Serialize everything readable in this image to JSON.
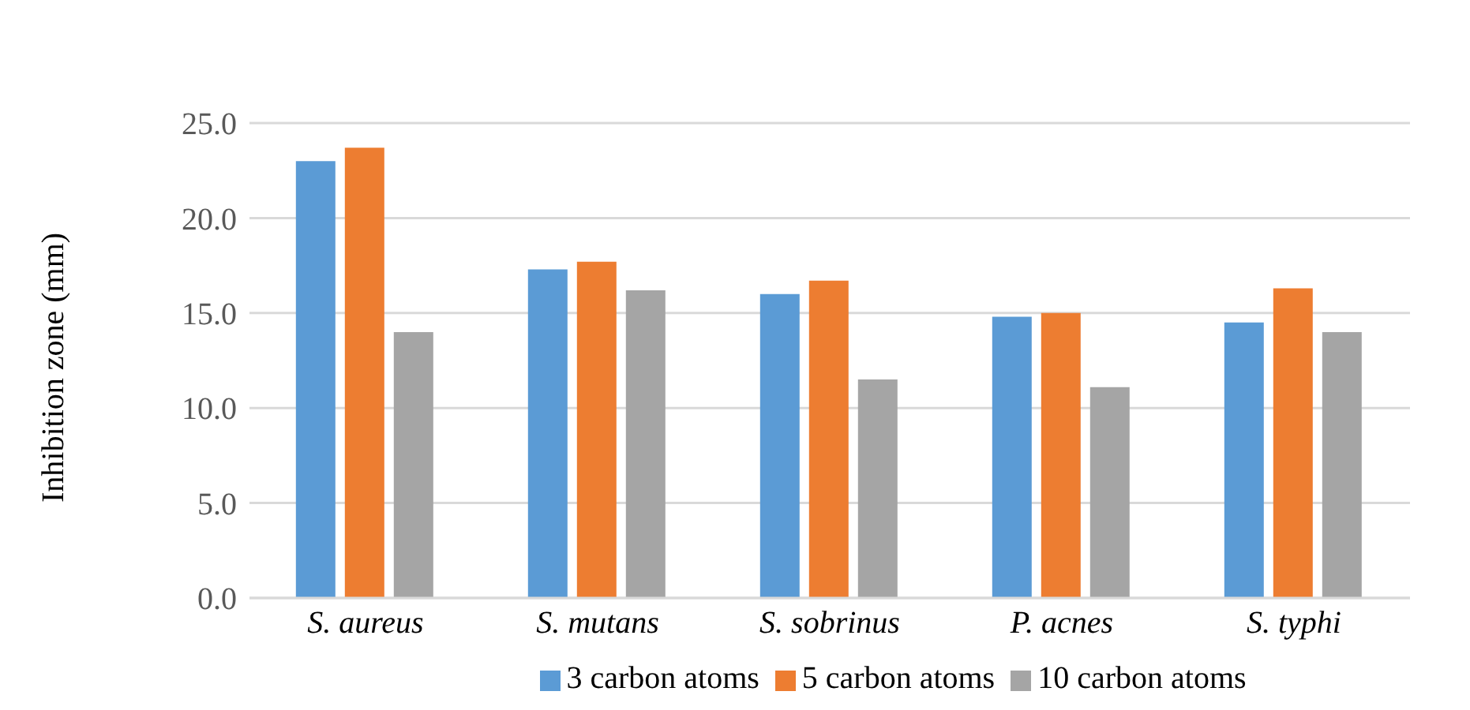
{
  "chart_data": {
    "type": "bar",
    "ylabel": "Inhibition zone (mm)",
    "categories": [
      "S. aureus",
      "S. mutans",
      "S. sobrinus",
      "P. acnes",
      "S. typhi"
    ],
    "series": [
      {
        "name": "3 carbon atoms",
        "color": "#5b9bd5",
        "values": [
          23.0,
          17.3,
          16.0,
          14.8,
          14.5
        ]
      },
      {
        "name": "5 carbon atoms",
        "color": "#ed7d31",
        "values": [
          23.7,
          17.7,
          16.7,
          15.0,
          16.3
        ]
      },
      {
        "name": "10 carbon atoms",
        "color": "#a5a5a5",
        "values": [
          14.0,
          16.2,
          11.5,
          11.1,
          14.0
        ]
      }
    ],
    "ylim": [
      0,
      25
    ],
    "yticks": [
      {
        "value": 0,
        "label": "0.0"
      },
      {
        "value": 5,
        "label": "5.0"
      },
      {
        "value": 10,
        "label": "10.0"
      },
      {
        "value": 15,
        "label": "15.0"
      },
      {
        "value": 20,
        "label": "20.0"
      },
      {
        "value": 25,
        "label": "25.0"
      }
    ],
    "grid": "y",
    "legend": "bottom"
  }
}
